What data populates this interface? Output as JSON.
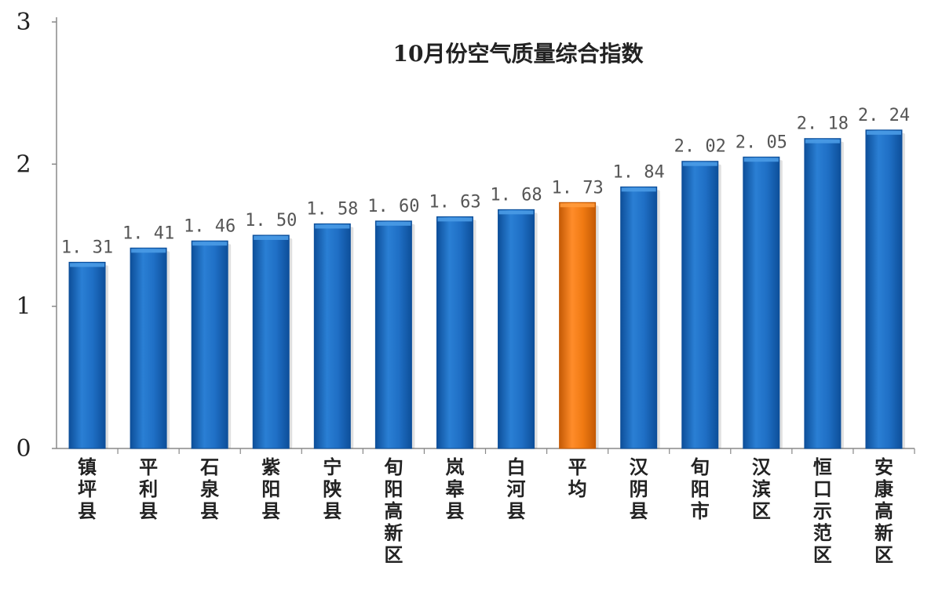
{
  "chart_data": {
    "type": "bar",
    "title": "10月份空气质量综合指数",
    "xlabel": "",
    "ylabel": "",
    "ylim": [
      0,
      3
    ],
    "y_ticks": [
      "0",
      "1",
      "2",
      "3"
    ],
    "grid": false,
    "legend": "none",
    "categories": [
      "镇坪县",
      "平利县",
      "石泉县",
      "紫阳县",
      "宁陕县",
      "旬阳高新区",
      "岚皋县",
      "白河县",
      "平均",
      "汉阴县",
      "旬阳市",
      "汉滨区",
      "恒口示范区",
      "安康高新区"
    ],
    "values": [
      1.31,
      1.41,
      1.46,
      1.5,
      1.58,
      1.6,
      1.63,
      1.68,
      1.73,
      1.84,
      2.02,
      2.05,
      2.18,
      2.24
    ],
    "value_labels": [
      "1. 31",
      "1. 41",
      "1. 46",
      "1. 50",
      "1. 58",
      "1. 60",
      "1. 63",
      "1. 68",
      "1. 73",
      "1. 84",
      "2. 02",
      "2. 05",
      "2. 18",
      "2. 24"
    ],
    "highlight_index": 8,
    "colors": {
      "bar": "#1f6fc5",
      "bar_light": "#4a9be6",
      "bar_dark": "#0d4f9a",
      "highlight": "#f07a12",
      "highlight_light": "#ff9a3c",
      "highlight_dark": "#c45a05",
      "axis": "#888888",
      "text": "#222222",
      "value_label": "#555555"
    }
  }
}
